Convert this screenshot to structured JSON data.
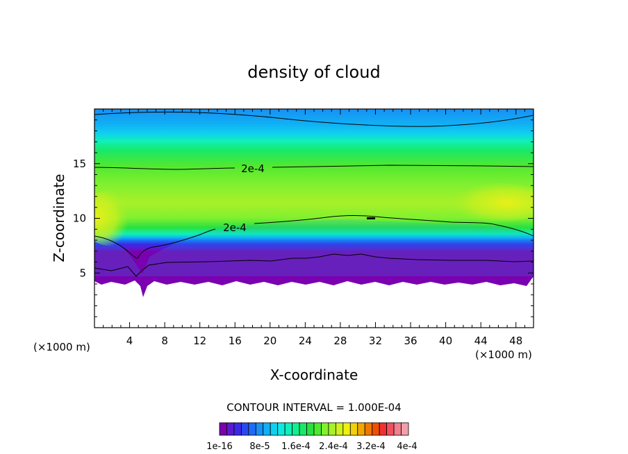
{
  "chart_data": {
    "type": "heatmap",
    "title": "density of cloud",
    "xlabel": "X-coordinate",
    "ylabel": "Z-coordinate",
    "x_unit_left": "(×1000 m)",
    "x_unit_right": "(×1000 m)",
    "xlim": [
      0,
      50
    ],
    "ylim": [
      0,
      20
    ],
    "x_ticks": [
      4,
      8,
      12,
      16,
      20,
      24,
      28,
      32,
      36,
      40,
      44,
      48
    ],
    "y_ticks": [
      5,
      10,
      15
    ],
    "contour_interval_text": "CONTOUR INTERVAL = 1.000E-04",
    "contour_labels": [
      {
        "text": "2e-4",
        "x": 17.5,
        "y": 14.6
      },
      {
        "text": "2e-4",
        "x": 15.8,
        "y": 9.2
      }
    ],
    "colorbar": {
      "colors": [
        "#7a00b0",
        "#5a1ad0",
        "#3a2ae6",
        "#2a4af0",
        "#1e6cf4",
        "#1890f4",
        "#10b0f4",
        "#10d0f0",
        "#10e8e0",
        "#10f0b8",
        "#10f090",
        "#18e868",
        "#28e040",
        "#50e830",
        "#80f030",
        "#a8f028",
        "#d0f020",
        "#f0f010",
        "#f0d010",
        "#f0a800",
        "#f07800",
        "#f05000",
        "#f03030",
        "#f05060",
        "#f08090",
        "#f0a0a8"
      ],
      "tick_labels": [
        "1e-16",
        "8e-5",
        "1.6e-4",
        "2.4e-4",
        "3.2e-4",
        "4e-4"
      ]
    }
  }
}
